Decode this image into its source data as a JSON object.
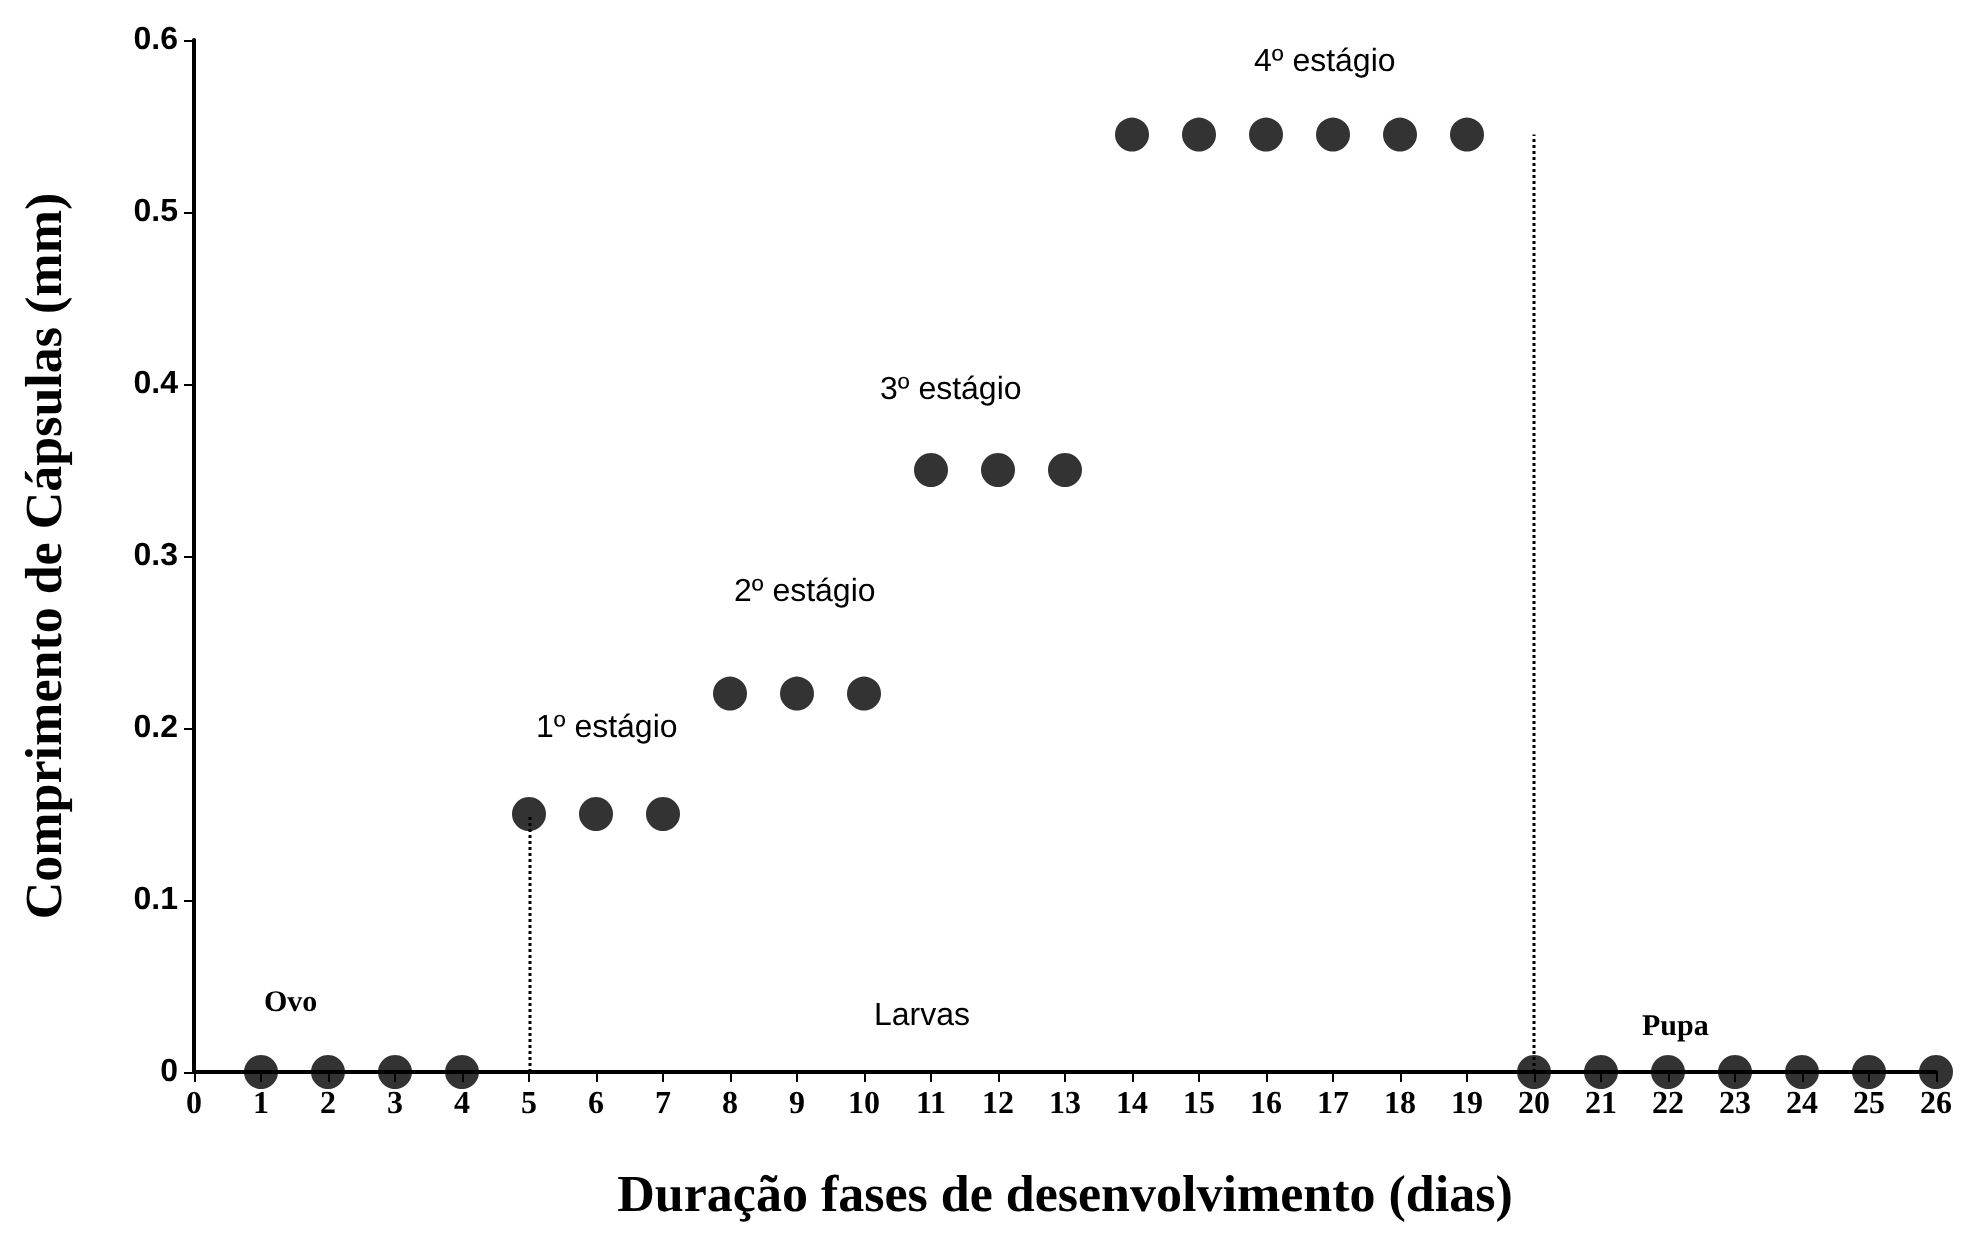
{
  "chart_data": {
    "type": "scatter",
    "xlabel": "Duração fases de desenvolvimento (dias)",
    "ylabel": "Comprimento de Cápsulas (mm)",
    "xlim": [
      0,
      26
    ],
    "xticks": [
      0,
      1,
      2,
      3,
      4,
      5,
      6,
      7,
      8,
      9,
      10,
      11,
      12,
      13,
      14,
      15,
      16,
      17,
      18,
      19,
      20,
      21,
      22,
      23,
      24,
      25,
      26
    ],
    "ylim": [
      0,
      0.6
    ],
    "yticks": [
      0,
      0.1,
      0.2,
      0.3,
      0.4,
      0.5,
      0.6
    ],
    "marker": "circle",
    "x": [
      1,
      2,
      3,
      4,
      5,
      6,
      7,
      8,
      9,
      10,
      11,
      12,
      13,
      14,
      15,
      16,
      17,
      18,
      19,
      20,
      21,
      22,
      23,
      24,
      25,
      26
    ],
    "series": [
      {
        "color": "#000000",
        "values": [
          0,
          0,
          0,
          0,
          0.15,
          0.15,
          0.15,
          0.22,
          0.22,
          0.22,
          0.35,
          0.35,
          0.35,
          0.545,
          0.545,
          0.545,
          0.545,
          0.545,
          0.545,
          0,
          0,
          0,
          0,
          0,
          0,
          0
        ]
      }
    ],
    "ref_lines": [
      {
        "axis": "x",
        "value": 5,
        "color": "#000000",
        "line_style": "dotted"
      },
      {
        "axis": "x",
        "value": 20,
        "color": "#000000",
        "line_style": "dotted"
      }
    ],
    "annotations": [
      "Ovo",
      "Larvas",
      "Pupa",
      "1º estágio",
      "2º estágio",
      "3º estágio",
      "4º estágio"
    ]
  }
}
